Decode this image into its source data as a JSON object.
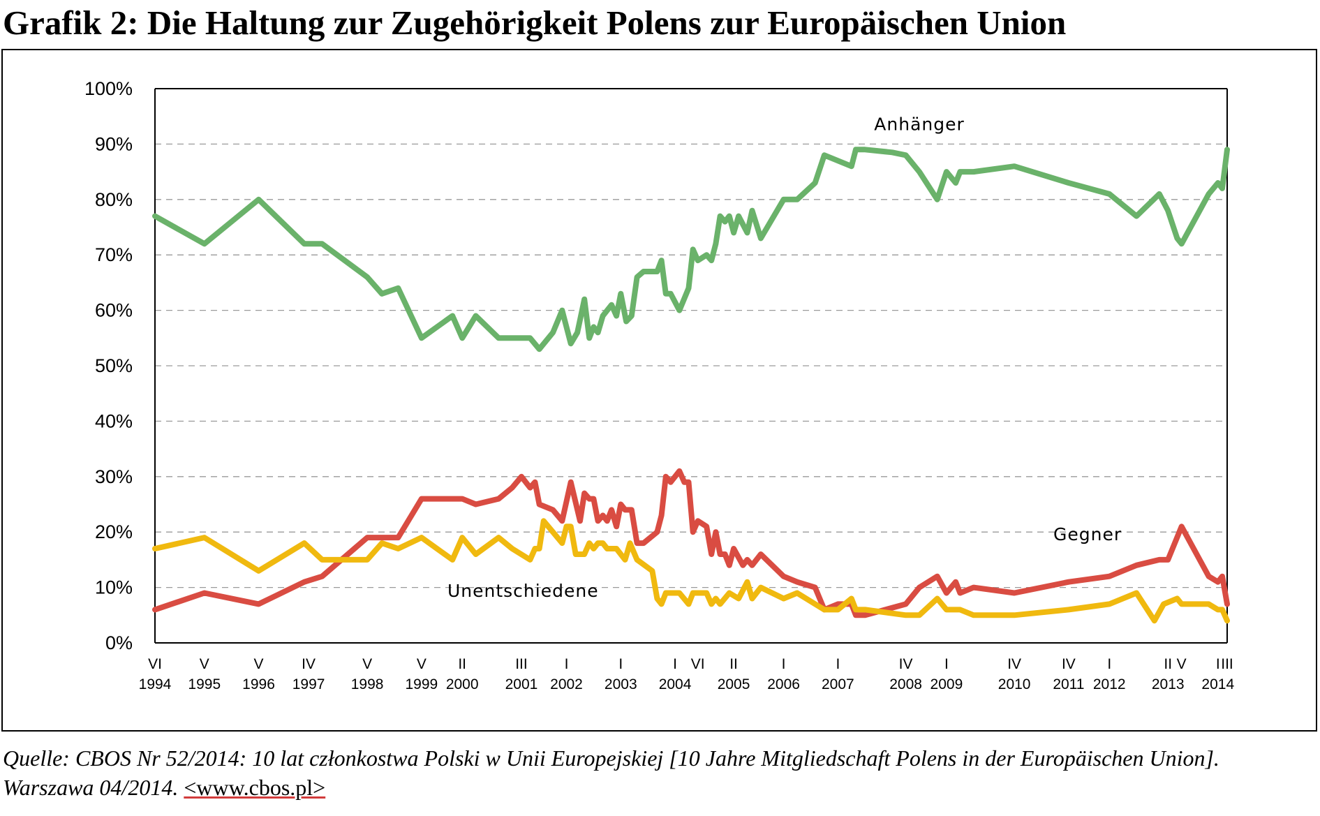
{
  "title": "Grafik 2:  Die Haltung zur Zugehörigkeit Polens zur Europäischen Union",
  "source": {
    "line1": "Quelle: CBOS Nr 52/2014: 10 lat członkostwa Polski w Unii Europejskiej [10 Jahre Mitgliedschaft Polens in der Europäischen Union].",
    "line2_prefix": "Warszawa 04/2014. ",
    "url": "<www.cbos.pl>"
  },
  "chart_data": {
    "type": "line",
    "title": "",
    "xlabel": "",
    "ylabel": "",
    "ylim": [
      0,
      100
    ],
    "yticks": [
      "0%",
      "10%",
      "20%",
      "30%",
      "40%",
      "50%",
      "60%",
      "70%",
      "80%",
      "90%",
      "100%"
    ],
    "grid": "horizontal dashed",
    "xticks": [
      {
        "x": 1994.42,
        "month": "VI",
        "year": "1994"
      },
      {
        "x": 1995.33,
        "month": "V",
        "year": "1995"
      },
      {
        "x": 1996.33,
        "month": "V",
        "year": "1996"
      },
      {
        "x": 1997.25,
        "month": "IV",
        "year": "1997"
      },
      {
        "x": 1998.33,
        "month": "V",
        "year": "1998"
      },
      {
        "x": 1999.33,
        "month": "V",
        "year": "1999"
      },
      {
        "x": 2000.08,
        "month": "II",
        "year": "2000"
      },
      {
        "x": 2001.17,
        "month": "III",
        "year": "2001"
      },
      {
        "x": 2002.0,
        "month": "I",
        "year": "2002"
      },
      {
        "x": 2003.0,
        "month": "I",
        "year": "2003"
      },
      {
        "x": 2004.0,
        "month": "I",
        "year": "2004"
      },
      {
        "x": 2004.42,
        "month": "VI",
        "year": ""
      },
      {
        "x": 2005.08,
        "month": "II",
        "year": "2005"
      },
      {
        "x": 2006.0,
        "month": "I",
        "year": "2006"
      },
      {
        "x": 2007.0,
        "month": "I",
        "year": "2007"
      },
      {
        "x": 2008.25,
        "month": "IV",
        "year": "2008"
      },
      {
        "x": 2009.0,
        "month": "I",
        "year": "2009"
      },
      {
        "x": 2010.25,
        "month": "IV",
        "year": "2010"
      },
      {
        "x": 2011.25,
        "month": "IV",
        "year": "2011"
      },
      {
        "x": 2012.0,
        "month": "I",
        "year": "2012"
      },
      {
        "x": 2013.08,
        "month": "II",
        "year": "2013"
      },
      {
        "x": 2013.33,
        "month": "V",
        "year": ""
      },
      {
        "x": 2014.0,
        "month": "I",
        "year": "2014"
      },
      {
        "x": 2014.17,
        "month": "III",
        "year": ""
      }
    ],
    "x_range": [
      1994.42,
      2014.17
    ],
    "series": [
      {
        "name": "Anhänger",
        "color": "#6ab26a",
        "label_at": {
          "x": 2008.5,
          "y": 92.5
        },
        "points": [
          [
            1994.42,
            77
          ],
          [
            1995.33,
            72
          ],
          [
            1996.33,
            80
          ],
          [
            1997.17,
            72
          ],
          [
            1997.5,
            72
          ],
          [
            1998.33,
            66
          ],
          [
            1998.6,
            63
          ],
          [
            1998.9,
            64
          ],
          [
            1999.33,
            55
          ],
          [
            1999.9,
            59
          ],
          [
            2000.08,
            55
          ],
          [
            2000.33,
            59
          ],
          [
            2000.75,
            55
          ],
          [
            2001.0,
            55
          ],
          [
            2001.33,
            55
          ],
          [
            2001.5,
            53
          ],
          [
            2001.75,
            56
          ],
          [
            2001.92,
            60
          ],
          [
            2002.08,
            54
          ],
          [
            2002.2,
            56
          ],
          [
            2002.33,
            62
          ],
          [
            2002.42,
            55
          ],
          [
            2002.5,
            57
          ],
          [
            2002.58,
            56
          ],
          [
            2002.67,
            59
          ],
          [
            2002.83,
            61
          ],
          [
            2002.92,
            59
          ],
          [
            2003.0,
            63
          ],
          [
            2003.1,
            58
          ],
          [
            2003.2,
            59
          ],
          [
            2003.3,
            66
          ],
          [
            2003.42,
            67
          ],
          [
            2003.58,
            67
          ],
          [
            2003.67,
            67
          ],
          [
            2003.75,
            69
          ],
          [
            2003.83,
            63
          ],
          [
            2003.92,
            63
          ],
          [
            2004.08,
            60
          ],
          [
            2004.25,
            64
          ],
          [
            2004.33,
            71
          ],
          [
            2004.42,
            69
          ],
          [
            2004.58,
            70
          ],
          [
            2004.67,
            69
          ],
          [
            2004.75,
            72
          ],
          [
            2004.83,
            77
          ],
          [
            2004.92,
            76
          ],
          [
            2005.0,
            77
          ],
          [
            2005.08,
            74
          ],
          [
            2005.17,
            77
          ],
          [
            2005.33,
            74
          ],
          [
            2005.42,
            78
          ],
          [
            2005.58,
            73
          ],
          [
            2006.0,
            80
          ],
          [
            2006.25,
            80
          ],
          [
            2006.58,
            83
          ],
          [
            2006.75,
            88
          ],
          [
            2007.25,
            86
          ],
          [
            2007.33,
            89
          ],
          [
            2007.5,
            89
          ],
          [
            2008.0,
            88.5
          ],
          [
            2008.25,
            88
          ],
          [
            2008.5,
            85
          ],
          [
            2008.83,
            80
          ],
          [
            2009.0,
            85
          ],
          [
            2009.17,
            83
          ],
          [
            2009.25,
            85
          ],
          [
            2009.5,
            85
          ],
          [
            2010.25,
            86
          ],
          [
            2011.25,
            83
          ],
          [
            2012.0,
            81
          ],
          [
            2012.5,
            77
          ],
          [
            2012.92,
            81
          ],
          [
            2013.08,
            78
          ],
          [
            2013.25,
            73
          ],
          [
            2013.33,
            72
          ],
          [
            2013.83,
            81
          ],
          [
            2014.0,
            83
          ],
          [
            2014.08,
            82
          ],
          [
            2014.17,
            89
          ]
        ]
      },
      {
        "name": "Gegner",
        "color": "#d94c42",
        "label_at": {
          "x": 2011.6,
          "y": 18.5
        },
        "points": [
          [
            1994.42,
            6
          ],
          [
            1995.33,
            9
          ],
          [
            1996.33,
            7
          ],
          [
            1997.17,
            11
          ],
          [
            1997.5,
            12
          ],
          [
            1998.33,
            19
          ],
          [
            1998.6,
            19
          ],
          [
            1998.9,
            19
          ],
          [
            1999.33,
            26
          ],
          [
            1999.9,
            26
          ],
          [
            2000.08,
            26
          ],
          [
            2000.33,
            25
          ],
          [
            2000.75,
            26
          ],
          [
            2001.0,
            28
          ],
          [
            2001.17,
            30
          ],
          [
            2001.33,
            28
          ],
          [
            2001.42,
            29
          ],
          [
            2001.5,
            25
          ],
          [
            2001.75,
            24
          ],
          [
            2001.92,
            22
          ],
          [
            2002.08,
            29
          ],
          [
            2002.25,
            22
          ],
          [
            2002.33,
            27
          ],
          [
            2002.42,
            26
          ],
          [
            2002.5,
            26
          ],
          [
            2002.58,
            22
          ],
          [
            2002.67,
            23
          ],
          [
            2002.75,
            22
          ],
          [
            2002.83,
            24
          ],
          [
            2002.92,
            21
          ],
          [
            2003.0,
            25
          ],
          [
            2003.08,
            24
          ],
          [
            2003.2,
            24
          ],
          [
            2003.3,
            18
          ],
          [
            2003.42,
            18
          ],
          [
            2003.67,
            20
          ],
          [
            2003.75,
            23
          ],
          [
            2003.83,
            30
          ],
          [
            2003.92,
            29
          ],
          [
            2004.08,
            31
          ],
          [
            2004.17,
            29
          ],
          [
            2004.25,
            29
          ],
          [
            2004.33,
            20
          ],
          [
            2004.42,
            22
          ],
          [
            2004.58,
            21
          ],
          [
            2004.67,
            16
          ],
          [
            2004.75,
            20
          ],
          [
            2004.83,
            16
          ],
          [
            2004.92,
            16
          ],
          [
            2005.0,
            14
          ],
          [
            2005.08,
            17
          ],
          [
            2005.25,
            14
          ],
          [
            2005.33,
            15
          ],
          [
            2005.42,
            14
          ],
          [
            2005.58,
            16
          ],
          [
            2006.0,
            12
          ],
          [
            2006.25,
            11
          ],
          [
            2006.58,
            10
          ],
          [
            2006.75,
            6
          ],
          [
            2007.0,
            7
          ],
          [
            2007.25,
            7
          ],
          [
            2007.33,
            5
          ],
          [
            2007.5,
            5
          ],
          [
            2008.25,
            7
          ],
          [
            2008.5,
            10
          ],
          [
            2008.83,
            12
          ],
          [
            2009.0,
            9
          ],
          [
            2009.17,
            11
          ],
          [
            2009.25,
            9
          ],
          [
            2009.5,
            10
          ],
          [
            2010.25,
            9
          ],
          [
            2011.25,
            11
          ],
          [
            2012.0,
            12
          ],
          [
            2012.5,
            14
          ],
          [
            2012.92,
            15
          ],
          [
            2013.08,
            15
          ],
          [
            2013.33,
            21
          ],
          [
            2013.83,
            12
          ],
          [
            2014.0,
            11
          ],
          [
            2014.08,
            12
          ],
          [
            2014.17,
            7
          ]
        ]
      },
      {
        "name": "Unentschiedene",
        "color": "#f0b90f",
        "label_at": {
          "x": 2001.2,
          "y": 8.3
        },
        "points": [
          [
            1994.42,
            17
          ],
          [
            1995.33,
            19
          ],
          [
            1996.33,
            13
          ],
          [
            1997.17,
            18
          ],
          [
            1997.5,
            15
          ],
          [
            1998.33,
            15
          ],
          [
            1998.6,
            18
          ],
          [
            1998.9,
            17
          ],
          [
            1999.33,
            19
          ],
          [
            1999.9,
            15
          ],
          [
            2000.08,
            19
          ],
          [
            2000.33,
            16
          ],
          [
            2000.75,
            19
          ],
          [
            2001.0,
            17
          ],
          [
            2001.33,
            15
          ],
          [
            2001.42,
            17
          ],
          [
            2001.5,
            17
          ],
          [
            2001.58,
            22
          ],
          [
            2001.75,
            20
          ],
          [
            2001.92,
            18
          ],
          [
            2002.0,
            21
          ],
          [
            2002.08,
            21
          ],
          [
            2002.17,
            16
          ],
          [
            2002.33,
            16
          ],
          [
            2002.42,
            18
          ],
          [
            2002.5,
            17
          ],
          [
            2002.58,
            18
          ],
          [
            2002.67,
            18
          ],
          [
            2002.75,
            17
          ],
          [
            2002.92,
            17
          ],
          [
            2003.08,
            15
          ],
          [
            2003.17,
            18
          ],
          [
            2003.3,
            15
          ],
          [
            2003.58,
            13
          ],
          [
            2003.67,
            8
          ],
          [
            2003.75,
            7
          ],
          [
            2003.83,
            9
          ],
          [
            2004.08,
            9
          ],
          [
            2004.25,
            7
          ],
          [
            2004.33,
            9
          ],
          [
            2004.58,
            9
          ],
          [
            2004.67,
            7
          ],
          [
            2004.75,
            8
          ],
          [
            2004.83,
            7
          ],
          [
            2005.0,
            9
          ],
          [
            2005.17,
            8
          ],
          [
            2005.33,
            11
          ],
          [
            2005.42,
            8
          ],
          [
            2005.58,
            10
          ],
          [
            2006.0,
            8
          ],
          [
            2006.25,
            9
          ],
          [
            2006.58,
            7
          ],
          [
            2006.75,
            6
          ],
          [
            2007.0,
            6
          ],
          [
            2007.25,
            8
          ],
          [
            2007.33,
            6
          ],
          [
            2007.5,
            6
          ],
          [
            2008.25,
            5
          ],
          [
            2008.5,
            5
          ],
          [
            2008.83,
            8
          ],
          [
            2009.0,
            6
          ],
          [
            2009.25,
            6
          ],
          [
            2009.5,
            5
          ],
          [
            2010.25,
            5
          ],
          [
            2011.25,
            6
          ],
          [
            2012.0,
            7
          ],
          [
            2012.5,
            9
          ],
          [
            2012.83,
            4
          ],
          [
            2013.0,
            7
          ],
          [
            2013.25,
            8
          ],
          [
            2013.33,
            7
          ],
          [
            2013.83,
            7
          ],
          [
            2014.0,
            6
          ],
          [
            2014.08,
            6
          ],
          [
            2014.17,
            4
          ]
        ]
      }
    ]
  }
}
